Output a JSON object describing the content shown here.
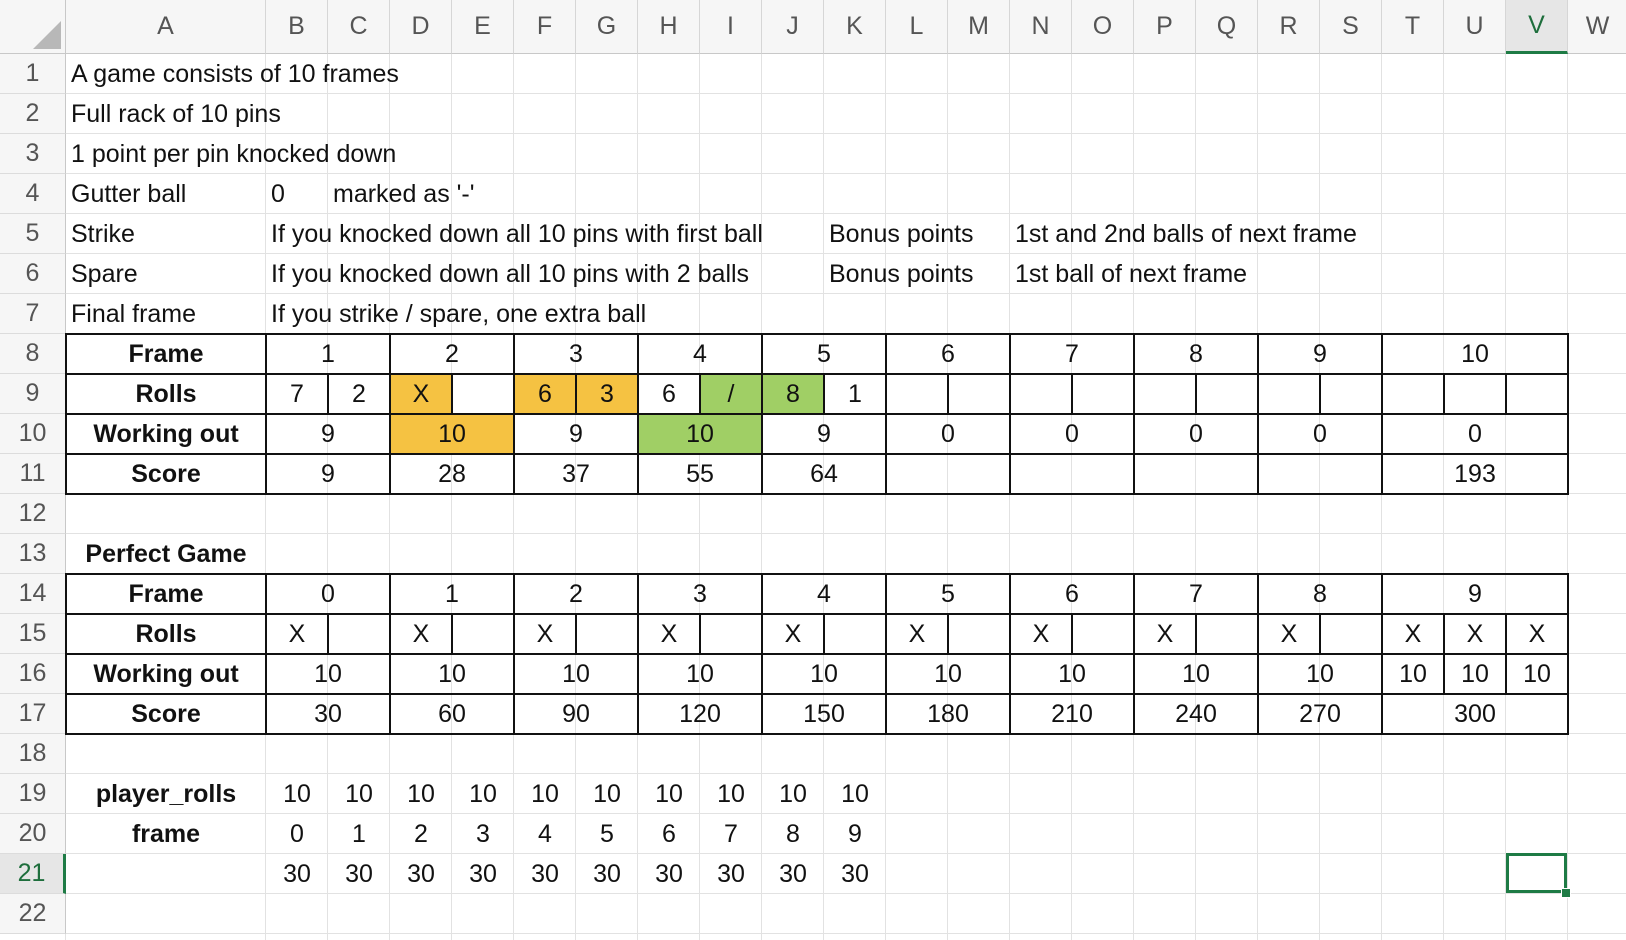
{
  "columns": [
    "A",
    "B",
    "C",
    "D",
    "E",
    "F",
    "G",
    "H",
    "I",
    "J",
    "K",
    "L",
    "M",
    "N",
    "O",
    "P",
    "Q",
    "R",
    "S",
    "T",
    "U",
    "V",
    "W"
  ],
  "rows": [
    "1",
    "2",
    "3",
    "4",
    "5",
    "6",
    "7",
    "8",
    "9",
    "10",
    "11",
    "12",
    "13",
    "14",
    "15",
    "16",
    "17",
    "18",
    "19",
    "20",
    "21",
    "22"
  ],
  "selected": {
    "column": "V",
    "row": "21",
    "cell": "V21"
  },
  "colors": {
    "strike_highlight": "#f5c242",
    "spare_highlight": "#a0cf65",
    "selection": "#1e7b45"
  },
  "cells": {
    "A1": "A game consists of 10 frames",
    "A2": "Full rack of 10 pins",
    "A3": "1 point per pin knocked down",
    "A4": "Gutter ball",
    "B4": "0",
    "C4": "marked as '-'",
    "A5": "Strike",
    "B5": "If you knocked down all 10 pins with first ball",
    "K5": "Bonus points",
    "N5": "1st and 2nd balls of next frame",
    "A6": "Spare",
    "B6": "If you knocked down all 10 pins with 2 balls",
    "K6": "Bonus points",
    "N6": "1st ball of next frame",
    "A7": "Final frame",
    "B7": "If you strike / spare, one extra ball",
    "A8": "Frame",
    "B8": "1",
    "D8": "2",
    "F8": "3",
    "H8": "4",
    "J8": "5",
    "L8": "6",
    "N8": "7",
    "P8": "8",
    "R8": "9",
    "T8": "10",
    "A9": "Rolls",
    "B9": "7",
    "C9": "2",
    "D9": "X",
    "E9": "",
    "F9": "6",
    "G9": "3",
    "H9": "6",
    "I9": "/",
    "J9": "8",
    "K9": "1",
    "A10": "Working out",
    "B10": "9",
    "D10": "10",
    "F10": "9",
    "H10": "10",
    "J10": "9",
    "L10": "0",
    "N10": "0",
    "P10": "0",
    "R10": "0",
    "T10": "0",
    "A11": "Score",
    "B11": "9",
    "D11": "28",
    "F11": "37",
    "H11": "55",
    "J11": "64",
    "T11": "193",
    "A13": "Perfect Game",
    "A14": "Frame",
    "B14": "0",
    "D14": "1",
    "F14": "2",
    "H14": "3",
    "J14": "4",
    "L14": "5",
    "N14": "6",
    "P14": "7",
    "R14": "8",
    "T14": "9",
    "A15": "Rolls",
    "B15": "X",
    "D15": "X",
    "F15": "X",
    "H15": "X",
    "J15": "X",
    "L15": "X",
    "N15": "X",
    "P15": "X",
    "R15": "X",
    "T15": "X",
    "U15": "X",
    "V15": "X",
    "A16": "Working out",
    "B16": "10",
    "D16": "10",
    "F16": "10",
    "H16": "10",
    "J16": "10",
    "L16": "10",
    "N16": "10",
    "P16": "10",
    "R16": "10",
    "T16": "10",
    "U16": "10",
    "V16": "10",
    "A17": "Score",
    "B17": "30",
    "D17": "60",
    "F17": "90",
    "H17": "120",
    "J17": "150",
    "L17": "180",
    "N17": "210",
    "P17": "240",
    "R17": "270",
    "T17": "300",
    "A19": "player_rolls",
    "B19": "10",
    "C19": "10",
    "D19": "10",
    "E19": "10",
    "F19": "10",
    "G19": "10",
    "H19": "10",
    "I19": "10",
    "J19": "10",
    "K19": "10",
    "A20": "frame",
    "B20": "0",
    "C20": "1",
    "D20": "2",
    "E20": "3",
    "F20": "4",
    "G20": "5",
    "H20": "6",
    "I20": "7",
    "J20": "8",
    "K20": "9",
    "B21": "30",
    "C21": "30",
    "D21": "30",
    "E21": "30",
    "F21": "30",
    "G21": "30",
    "H21": "30",
    "I21": "30",
    "J21": "30",
    "K21": "30"
  }
}
